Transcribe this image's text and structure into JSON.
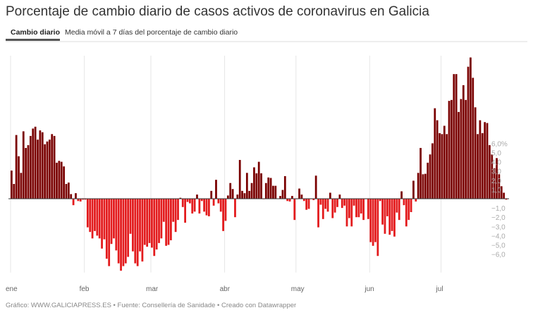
{
  "title": "Porcentaje de cambio diario de casos activos de coronavirus en Galicia",
  "tabs": [
    {
      "label": "Cambio diario",
      "active": true
    },
    {
      "label": "Media móvil a 7 días del porcentaje de cambio diario",
      "active": false
    }
  ],
  "footer": "Gráfico: WWW.GALICIAPRESS.ES • Fuente: Consellería de Sanidade • Creado con Datawrapper",
  "colors": {
    "positive": "#7a0000",
    "negative": "#e31a1c"
  },
  "chart_data": {
    "type": "bar",
    "title": "Porcentaje de cambio diario de casos activos de coronavirus en Galicia",
    "xlabel": "",
    "ylabel": "",
    "ylim": [
      -8,
      15.5
    ],
    "grid": "vertical month lines",
    "x_tick_labels": [
      "ene",
      "feb",
      "mar",
      "abr",
      "may",
      "jun",
      "jul"
    ],
    "month_lengths": [
      31,
      28,
      31,
      30,
      31,
      30,
      28
    ],
    "y_ticks": [
      6,
      5,
      4,
      3,
      2,
      1,
      -1,
      -2,
      -3,
      -4,
      -5,
      -6
    ],
    "y_tick_labels": [
      "6,0%",
      "5,0",
      "4,0",
      "3,0",
      "2,0",
      "1,0",
      "−1,0",
      "−2,0",
      "−3,0",
      "−4,0",
      "−5,0",
      "−6,0"
    ],
    "values": [
      3.05,
      1.6,
      6.9,
      4.6,
      2.8,
      7.3,
      5.5,
      5.8,
      6.8,
      7.6,
      7.8,
      6.4,
      7.4,
      7.2,
      5.9,
      6.2,
      6.4,
      7.0,
      6.8,
      3.9,
      4.1,
      4.0,
      3.5,
      1.6,
      1.75,
      0.5,
      -0.7,
      0.6,
      -0.25,
      -0.3,
      -0.1,
      -0.1,
      -3.1,
      -3.6,
      -4.3,
      -3.5,
      -4.0,
      -4.3,
      -5.4,
      -4.4,
      -6.5,
      -7.3,
      -4.9,
      -4.3,
      -5.6,
      -7.0,
      -7.8,
      -7.3,
      -7.0,
      -6.3,
      -3.8,
      -5.7,
      -7.0,
      -7.3,
      -5.7,
      -6.8,
      -5.0,
      -5.2,
      -4.8,
      -5.3,
      -6.2,
      -5.5,
      -4.8,
      -4.3,
      -2.5,
      -5.1,
      -5.0,
      -4.5,
      -2.5,
      -3.6,
      -2.3,
      0.1,
      -0.9,
      -2.6,
      -0.35,
      -0.5,
      -1.6,
      -1.4,
      0.45,
      -1.6,
      -0.25,
      -1.4,
      -1.8,
      -1.9,
      0.85,
      -0.75,
      2.05,
      -0.5,
      -1.4,
      -3.5,
      -2.4,
      0.35,
      1.7,
      1.05,
      -2.0,
      0.45,
      4.2,
      0.85,
      0.6,
      2.8,
      0.85,
      1.7,
      3.4,
      2.75,
      4.0,
      2.75,
      -0.05,
      1.7,
      2.3,
      2.25,
      1.4,
      1.4,
      0,
      0.3,
      0.95,
      2.45,
      -0.25,
      -0.3,
      0.3,
      -2.3,
      -0.05,
      1.1,
      0.45,
      -0.25,
      -1.2,
      -1.1,
      -0.05,
      -0.15,
      2.5,
      -3.1,
      -0.65,
      -2.2,
      -1.1,
      -1.4,
      0.65,
      -2.1,
      -1.5,
      -0.9,
      0.45,
      -1.0,
      -0.75,
      -3.0,
      -2.1,
      -3.0,
      -0.75,
      -2.0,
      -2.0,
      -1.6,
      -2.3,
      -0.05,
      -2.2,
      -4.7,
      -5.1,
      -4.7,
      -6.2,
      -0.25,
      -2.8,
      -3.8,
      -1.9,
      -3.9,
      -3.5,
      -4.1,
      -1.5,
      -2.3,
      0.8,
      -0.7,
      -3.0,
      -2.3,
      -1.45,
      1.95,
      -0.3,
      2.8,
      5.5,
      2.65,
      2.7,
      3.9,
      4.8,
      6.0,
      9.8,
      8.5,
      7.1,
      7.0,
      7.9,
      7.0,
      10.6,
      10.7,
      13.5,
      13.5,
      9.4,
      10.8,
      12.3,
      10.7,
      14.3,
      15.3,
      13.1,
      9.9,
      7.0,
      8.5,
      7.1,
      8.3,
      8.2,
      5.8,
      4.8,
      3.3,
      4.4,
      2.65,
      1.35,
      0.65,
      -0.1
    ]
  }
}
